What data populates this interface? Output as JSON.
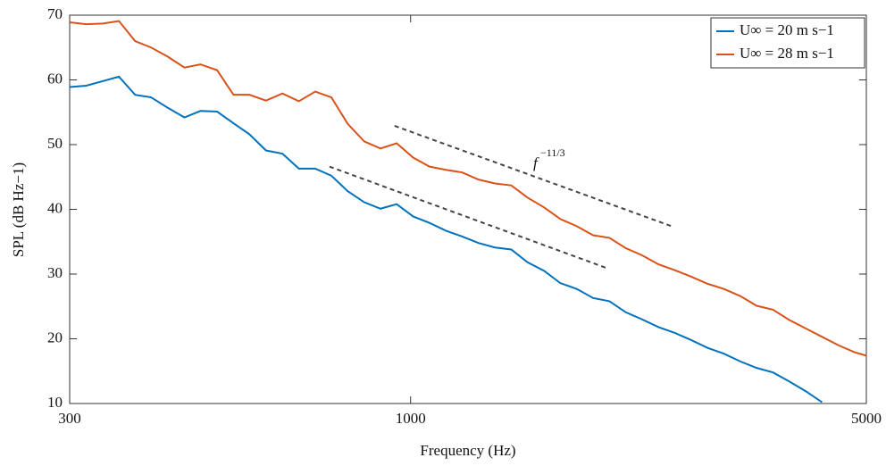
{
  "chart_data": {
    "type": "line",
    "xscale": "log",
    "xlabel": "Frequency (Hz)",
    "ylabel": "SPL (dB Hz−1)",
    "xlim": [
      300,
      5000
    ],
    "xticks": [
      300,
      1000,
      5000
    ],
    "ylim": [
      10,
      70
    ],
    "yticks": [
      10,
      20,
      30,
      40,
      50,
      60,
      70
    ],
    "legend": "upper right",
    "box": true,
    "series": [
      {
        "name": "U∞ = 20 m s−1",
        "color": "#0072bd",
        "x": [
          300,
          318,
          337,
          357,
          378,
          400,
          424,
          450,
          476,
          505,
          535,
          566,
          600,
          636,
          674,
          714,
          756,
          801,
          849,
          899,
          952,
          1009,
          1069,
          1133,
          1200,
          1271,
          1347,
          1427,
          1512,
          1602,
          1697,
          1798,
          1905,
          2018,
          2138,
          2265,
          2400,
          2543,
          2694,
          2854,
          3024,
          3204,
          3394,
          3596,
          3810,
          4036,
          4276
        ],
        "values": [
          58.9,
          59.1,
          59.8,
          60.5,
          57.7,
          57.3,
          55.7,
          54.2,
          55.2,
          55.1,
          53.3,
          51.6,
          49.1,
          48.6,
          46.3,
          46.3,
          45.2,
          42.8,
          41.1,
          40.1,
          40.8,
          38.9,
          37.9,
          36.7,
          35.8,
          34.8,
          34.1,
          33.8,
          31.8,
          30.5,
          28.6,
          27.7,
          26.3,
          25.8,
          24.1,
          23.0,
          21.8,
          20.9,
          19.8,
          18.6,
          17.7,
          16.5,
          15.5,
          14.8,
          13.4,
          11.9,
          10.2
        ]
      },
      {
        "name": "U∞ = 28 m s−1",
        "color": "#d95319",
        "x": [
          300,
          318,
          337,
          357,
          378,
          400,
          424,
          450,
          476,
          505,
          535,
          566,
          600,
          636,
          674,
          714,
          756,
          801,
          849,
          899,
          952,
          1009,
          1069,
          1133,
          1200,
          1271,
          1347,
          1427,
          1512,
          1602,
          1697,
          1798,
          1905,
          2018,
          2138,
          2265,
          2400,
          2543,
          2694,
          2854,
          3024,
          3204,
          3394,
          3596,
          3810,
          4036,
          4276,
          4531,
          4800,
          5000
        ],
        "values": [
          68.9,
          68.6,
          68.7,
          69.1,
          66.0,
          65.0,
          63.6,
          61.9,
          62.4,
          61.5,
          57.7,
          57.7,
          56.8,
          57.9,
          56.7,
          58.2,
          57.3,
          53.2,
          50.5,
          49.4,
          50.2,
          48.0,
          46.6,
          46.1,
          45.7,
          44.6,
          44.0,
          43.7,
          41.8,
          40.3,
          38.5,
          37.4,
          36.0,
          35.6,
          34.0,
          32.9,
          31.5,
          30.6,
          29.6,
          28.5,
          27.7,
          26.6,
          25.1,
          24.5,
          22.9,
          21.6,
          20.3,
          19.0,
          17.9,
          17.4
        ]
      }
    ],
    "reference_lines": [
      {
        "x": [
          945,
          2512
        ],
        "y": [
          52.9,
          37.4
        ]
      },
      {
        "x": [
          751,
          2002
        ],
        "y": [
          46.6,
          30.9
        ]
      }
    ],
    "annotation": {
      "text": "f",
      "superscript": "−11/3"
    }
  }
}
